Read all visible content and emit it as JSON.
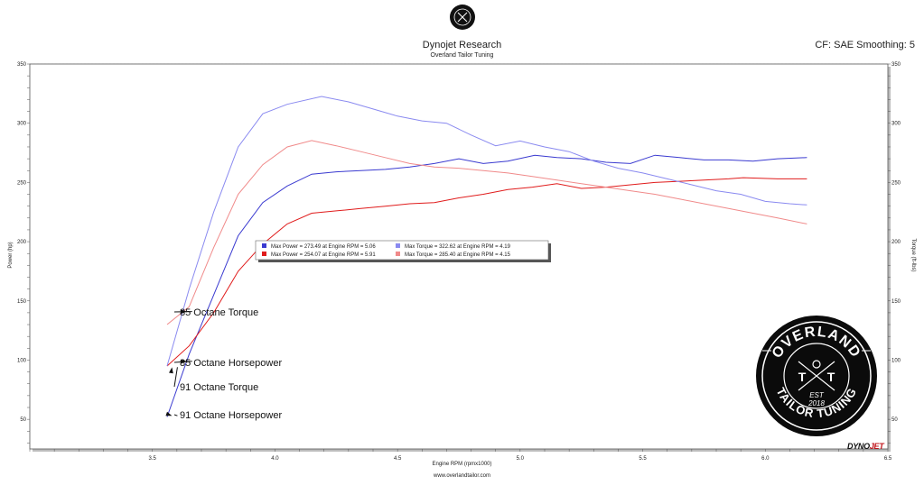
{
  "header": {
    "title": "Dynojet Research",
    "subtitle": "Overland Tailor Tuning",
    "cf": "CF: SAE Smoothing: 5"
  },
  "footer": {
    "website": "www.overlandtailor.com",
    "brand_a": "DYNO",
    "brand_b": "JET"
  },
  "logo": {
    "text_top": "OVERLAND",
    "text_bottom": "TAILOR TUNING",
    "est_a": "EST",
    "est_b": "2018",
    "letters": [
      "T",
      "T"
    ]
  },
  "chart_data": {
    "type": "line",
    "xlabel": "Engine RPM (rpmx1000)",
    "ylabel_left": "Power (hp)",
    "ylabel_right": "Torque (ft-lbs)",
    "xlim": [
      3.0,
      6.5
    ],
    "ylim": [
      25,
      350
    ],
    "x_ticks": [
      3.5,
      4.0,
      4.5,
      5.0,
      5.5,
      6.0,
      6.5
    ],
    "x_tick_labels": [
      "3.5",
      "4.0",
      "4.5",
      "5.0",
      "5.5",
      "6.0",
      "6.5"
    ],
    "y_ticks": [
      50,
      100,
      150,
      200,
      250,
      300,
      350
    ],
    "y_tick_labels": [
      "50",
      "100",
      "150",
      "200",
      "250",
      "300",
      "350"
    ],
    "grid": true,
    "series": [
      {
        "name": "Max Power = 273.49 at Engine RPM = 5.06",
        "color": "#3a3ad0",
        "x": [
          3.56,
          3.65,
          3.75,
          3.85,
          3.95,
          4.05,
          4.15,
          4.25,
          4.35,
          4.45,
          4.55,
          4.65,
          4.75,
          4.85,
          4.95,
          5.06,
          5.15,
          5.25,
          5.35,
          5.45,
          5.55,
          5.65,
          5.75,
          5.85,
          5.95,
          6.05,
          6.17
        ],
        "y": [
          52,
          105,
          155,
          205,
          233,
          247,
          257,
          259,
          260,
          261,
          263,
          266,
          270,
          266,
          268,
          273,
          271,
          270,
          267,
          266,
          273,
          271,
          269,
          269,
          268,
          270,
          271
        ]
      },
      {
        "name": "Max Power = 254.07 at Engine RPM = 5.91",
        "color": "#e01c1c",
        "x": [
          3.56,
          3.65,
          3.75,
          3.85,
          3.95,
          4.05,
          4.15,
          4.25,
          4.35,
          4.45,
          4.55,
          4.65,
          4.75,
          4.85,
          4.95,
          5.05,
          5.15,
          5.25,
          5.35,
          5.45,
          5.55,
          5.65,
          5.75,
          5.85,
          5.91,
          6.05,
          6.17
        ],
        "y": [
          95,
          112,
          140,
          175,
          198,
          215,
          224,
          226,
          228,
          230,
          232,
          233,
          237,
          240,
          244,
          246,
          249,
          245,
          246,
          248,
          250,
          251,
          252,
          253,
          254,
          253,
          253
        ]
      },
      {
        "name": "Max Torque = 322.62 at Engine RPM = 4.19",
        "color": "#8a8af0",
        "x": [
          3.56,
          3.65,
          3.75,
          3.85,
          3.95,
          4.05,
          4.19,
          4.3,
          4.4,
          4.5,
          4.6,
          4.7,
          4.8,
          4.9,
          5.0,
          5.1,
          5.2,
          5.3,
          5.4,
          5.5,
          5.6,
          5.7,
          5.8,
          5.9,
          6.0,
          6.1,
          6.17
        ],
        "y": [
          95,
          160,
          225,
          280,
          308,
          316,
          322.62,
          318,
          312,
          306,
          302,
          300,
          290,
          281,
          285,
          280,
          276,
          268,
          262,
          258,
          253,
          248,
          243,
          240,
          234,
          232,
          231
        ]
      },
      {
        "name": "Max Torque = 285.40 at Engine RPM = 4.15",
        "color": "#f08a8a",
        "x": [
          3.56,
          3.65,
          3.75,
          3.85,
          3.95,
          4.05,
          4.15,
          4.25,
          4.35,
          4.45,
          4.55,
          4.65,
          4.75,
          4.85,
          4.95,
          5.05,
          5.15,
          5.25,
          5.35,
          5.45,
          5.55,
          5.65,
          5.75,
          5.85,
          5.95,
          6.05,
          6.17
        ],
        "y": [
          130,
          145,
          195,
          240,
          265,
          280,
          285.4,
          281,
          276,
          271,
          266,
          263,
          262,
          260,
          258,
          255,
          252,
          249,
          246,
          243,
          240,
          236,
          232,
          228,
          224,
          220,
          215
        ]
      }
    ],
    "annotations": [
      {
        "label": "85 Octane Torque",
        "arrow_x": 3.64,
        "arrow_y": 141
      },
      {
        "label": "85 Octane Horsepower",
        "arrow_x": 3.64,
        "arrow_y": 99
      },
      {
        "label": "91 Octane Torque",
        "arrow_x": 3.58,
        "arrow_y": 94
      },
      {
        "label": "91 Octane Horsepower",
        "arrow_x": 3.58,
        "arrow_y": 53
      }
    ],
    "legend_position": "center"
  }
}
